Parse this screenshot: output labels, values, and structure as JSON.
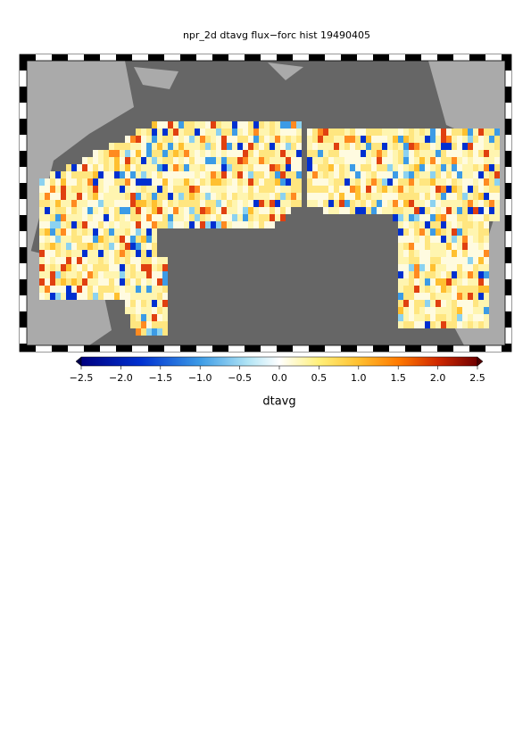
{
  "map": {
    "title": "npr_2d dtavg flux−forc hist 19490405",
    "colorbar": {
      "label": "dtavg",
      "range": [
        -2.5,
        2.5
      ],
      "ticks": [
        {
          "value": -2.5,
          "label": "−2.5"
        },
        {
          "value": -2.0,
          "label": "−2.0"
        },
        {
          "value": -1.5,
          "label": "−1.5"
        },
        {
          "value": -1.0,
          "label": "−1.0"
        },
        {
          "value": -0.5,
          "label": "−0.5"
        },
        {
          "value": 0,
          "label": "0.0"
        },
        0.5,
        {
          "value": 1,
          "label": "1.0"
        },
        1.5,
        {
          "value": 2,
          "label": "2.0"
        },
        2.5
      ]
    }
  }
}
